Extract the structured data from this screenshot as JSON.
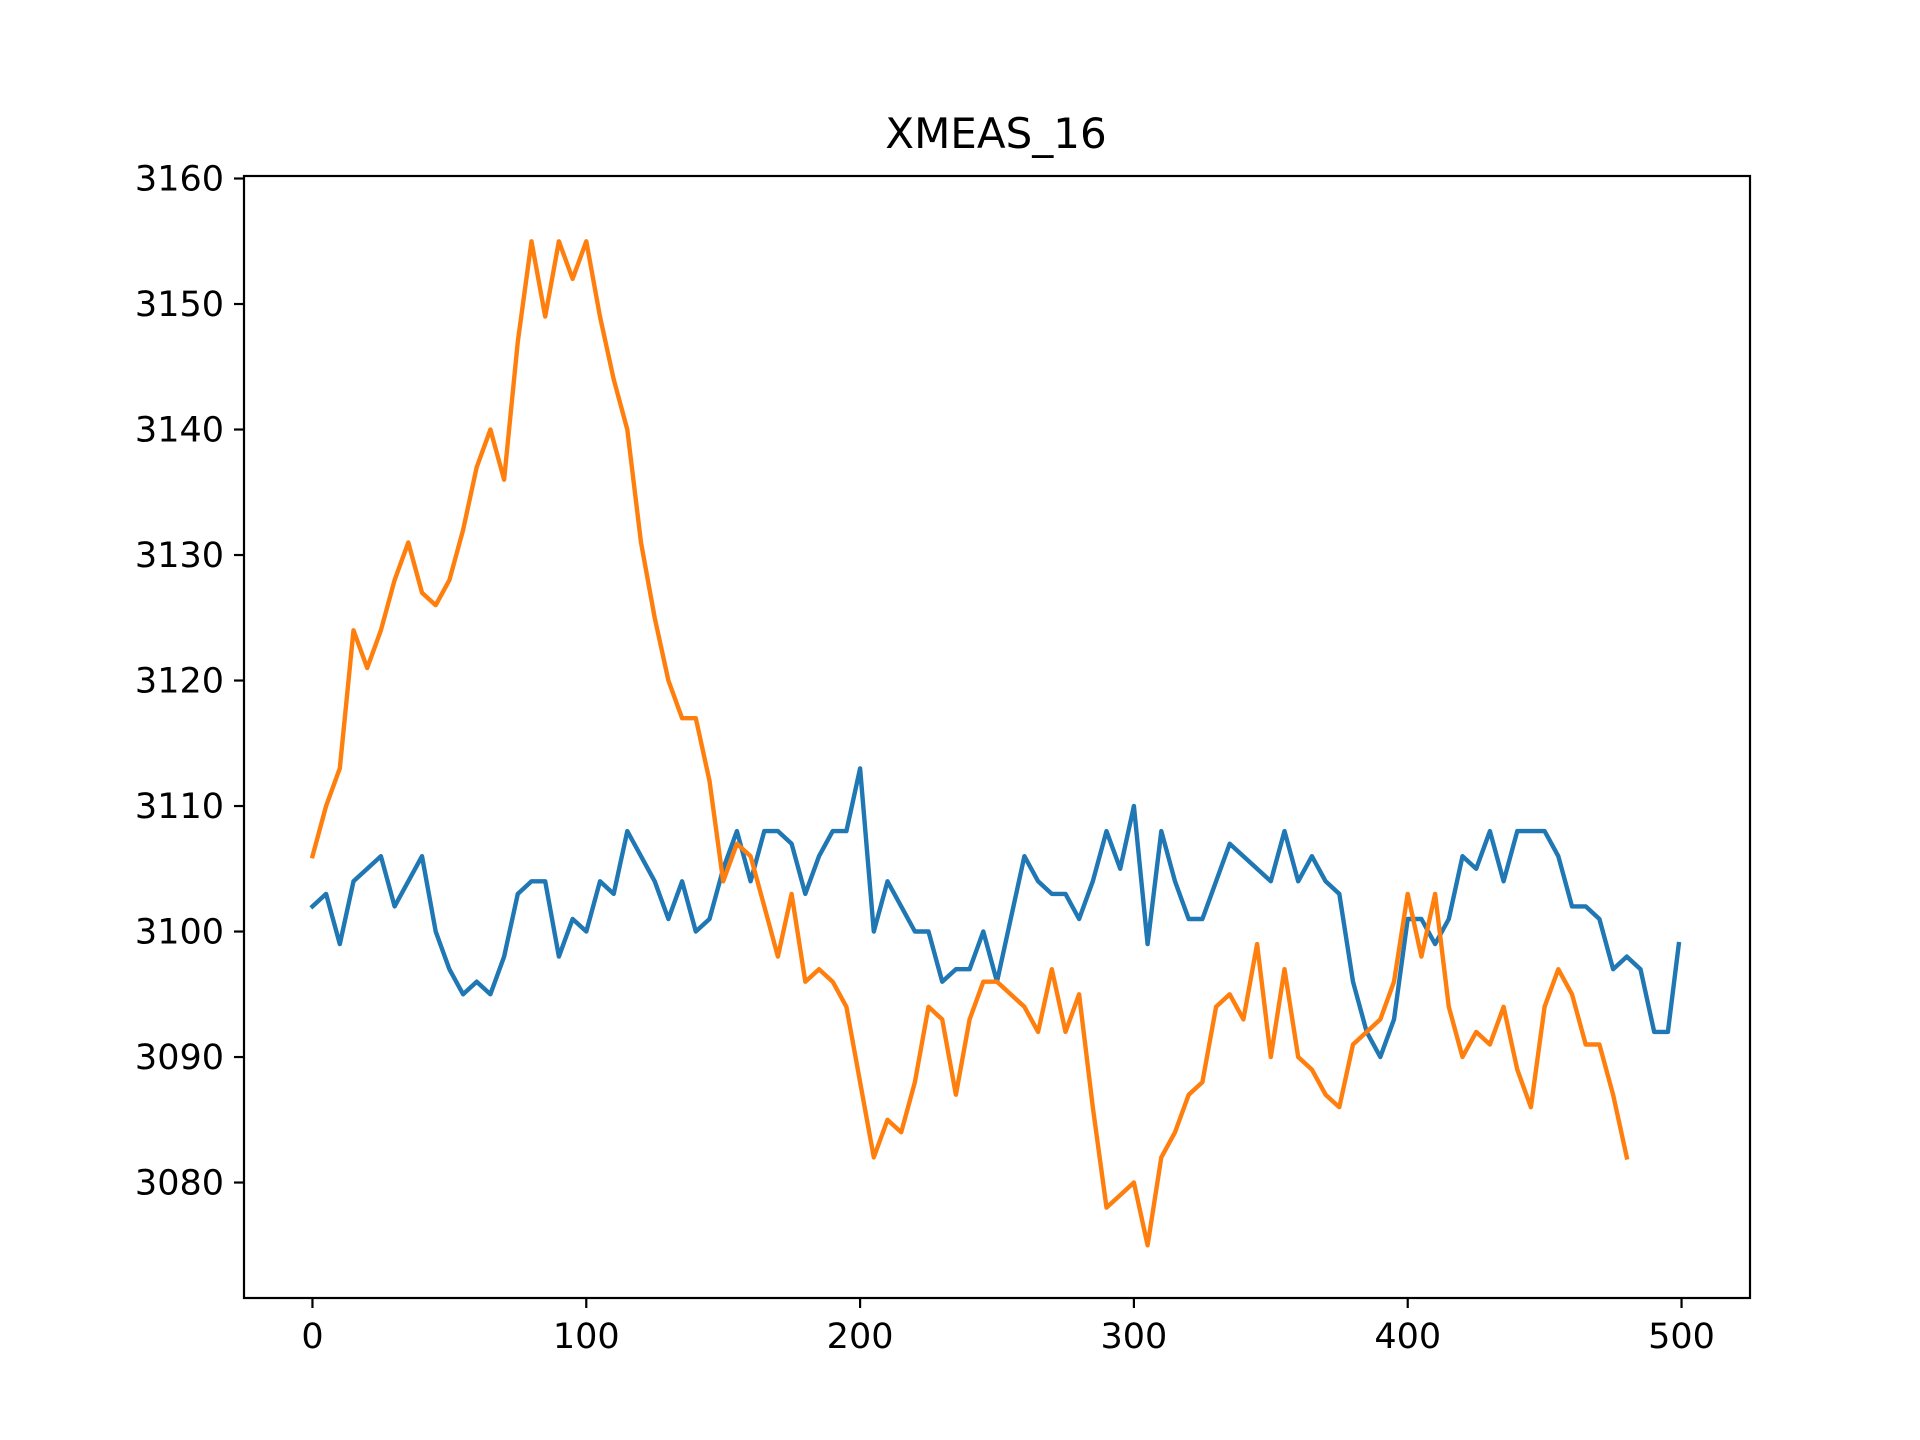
{
  "chart_data": {
    "type": "line",
    "title": "XMEAS_16",
    "xlabel": "",
    "ylabel": "",
    "xlim": [
      -25,
      525
    ],
    "ylim": [
      3070.8,
      3160.2
    ],
    "xticks": [
      0,
      100,
      200,
      300,
      400,
      500
    ],
    "yticks": [
      3080,
      3090,
      3100,
      3110,
      3120,
      3130,
      3140,
      3150,
      3160
    ],
    "grid": false,
    "legend": "none",
    "series": [
      {
        "color": "#1f77b4",
        "x": [
          0,
          5,
          10,
          15,
          20,
          25,
          30,
          35,
          40,
          45,
          50,
          55,
          60,
          65,
          70,
          75,
          80,
          85,
          90,
          95,
          100,
          105,
          110,
          115,
          120,
          125,
          130,
          135,
          140,
          145,
          150,
          155,
          160,
          165,
          170,
          175,
          180,
          185,
          190,
          195,
          200,
          205,
          210,
          215,
          220,
          225,
          230,
          235,
          240,
          245,
          250,
          255,
          260,
          265,
          270,
          275,
          280,
          285,
          290,
          295,
          300,
          305,
          310,
          315,
          320,
          325,
          330,
          335,
          340,
          345,
          350,
          355,
          360,
          365,
          370,
          375,
          380,
          385,
          390,
          395,
          400,
          405,
          410,
          415,
          420,
          425,
          430,
          435,
          440,
          445,
          450,
          455,
          460,
          465,
          470,
          475,
          480,
          485,
          490,
          495,
          499
        ],
        "y": [
          3102,
          3103,
          3099,
          3104,
          3105,
          3106,
          3102,
          3104,
          3106,
          3100,
          3097,
          3095,
          3096,
          3095,
          3098,
          3103,
          3104,
          3104,
          3098,
          3101,
          3100,
          3104,
          3103,
          3108,
          3106,
          3104,
          3101,
          3104,
          3100,
          3101,
          3105,
          3108,
          3104,
          3108,
          3108,
          3107,
          3103,
          3106,
          3108,
          3108,
          3113,
          3100,
          3104,
          3102,
          3100,
          3100,
          3096,
          3097,
          3097,
          3100,
          3096,
          3101,
          3106,
          3104,
          3103,
          3103,
          3101,
          3104,
          3108,
          3105,
          3110,
          3099,
          3108,
          3104,
          3101,
          3101,
          3104,
          3107,
          3106,
          3105,
          3104,
          3108,
          3104,
          3106,
          3104,
          3103,
          3096,
          3092,
          3090,
          3093,
          3101,
          3101,
          3099,
          3101,
          3106,
          3105,
          3108,
          3104,
          3108,
          3108,
          3108,
          3106,
          3102,
          3102,
          3101,
          3097,
          3098,
          3097,
          3092,
          3092,
          3099
        ]
      },
      {
        "color": "#ff7f0e",
        "x": [
          0,
          5,
          10,
          15,
          20,
          25,
          30,
          35,
          40,
          45,
          50,
          55,
          60,
          65,
          70,
          75,
          80,
          85,
          90,
          95,
          100,
          105,
          110,
          115,
          120,
          125,
          130,
          135,
          140,
          145,
          150,
          155,
          160,
          165,
          170,
          175,
          180,
          185,
          190,
          195,
          200,
          205,
          210,
          215,
          220,
          225,
          230,
          235,
          240,
          245,
          250,
          255,
          260,
          265,
          270,
          275,
          280,
          285,
          290,
          295,
          300,
          305,
          310,
          315,
          320,
          325,
          330,
          335,
          340,
          345,
          350,
          355,
          360,
          365,
          370,
          375,
          380,
          385,
          390,
          395,
          400,
          405,
          410,
          415,
          420,
          425,
          430,
          435,
          440,
          445,
          450,
          455,
          460,
          465,
          470,
          475,
          480
        ],
        "y": [
          3106,
          3110,
          3113,
          3124,
          3121,
          3124,
          3128,
          3131,
          3127,
          3126,
          3128,
          3132,
          3137,
          3140,
          3136,
          3147,
          3155,
          3149,
          3155,
          3152,
          3155,
          3149,
          3144,
          3140,
          3131,
          3125,
          3120,
          3117,
          3117,
          3112,
          3104,
          3107,
          3106,
          3102,
          3098,
          3103,
          3096,
          3097,
          3096,
          3094,
          3088,
          3082,
          3085,
          3084,
          3088,
          3094,
          3093,
          3087,
          3093,
          3096,
          3096,
          3095,
          3094,
          3092,
          3097,
          3092,
          3095,
          3086,
          3078,
          3079,
          3080,
          3075,
          3082,
          3084,
          3087,
          3088,
          3094,
          3095,
          3093,
          3099,
          3090,
          3097,
          3090,
          3089,
          3087,
          3086,
          3091,
          3092,
          3093,
          3096,
          3103,
          3098,
          3103,
          3094,
          3090,
          3092,
          3091,
          3094,
          3089,
          3086,
          3094,
          3097,
          3095,
          3091,
          3091,
          3087,
          3082
        ]
      }
    ]
  }
}
